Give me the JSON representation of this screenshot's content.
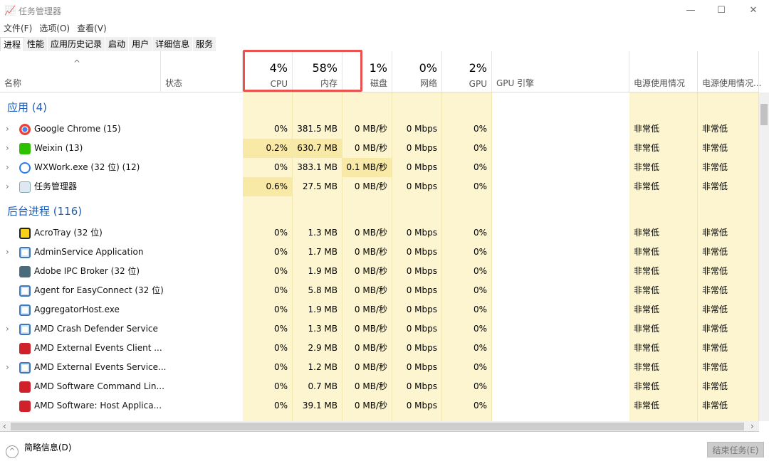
{
  "window": {
    "title": "任务管理器",
    "minimize": "—",
    "maximize": "☐",
    "close": "✕"
  },
  "menu": [
    "文件(F)",
    "选项(O)",
    "查看(V)"
  ],
  "tabs": [
    "进程",
    "性能",
    "应用历史记录",
    "启动",
    "用户",
    "详细信息",
    "服务"
  ],
  "columns": {
    "name": "名称",
    "status": "状态",
    "cpu_pct": "4%",
    "cpu": "CPU",
    "mem_pct": "58%",
    "mem": "内存",
    "disk_pct": "1%",
    "disk": "磁盘",
    "net_pct": "0%",
    "net": "网络",
    "gpu_pct": "2%",
    "gpu": "GPU",
    "gpu_engine": "GPU 引擎",
    "power": "电源使用情况",
    "power_trend": "电源使用情况..."
  },
  "groups": [
    {
      "label": "应用 (4)",
      "rows": [
        {
          "name": "Google Chrome (15)",
          "icon": "chrome-icon",
          "expand": true,
          "cpu": "0%",
          "mem": "381.5 MB",
          "disk": "0 MB/秒",
          "net": "0 Mbps",
          "gpu": "0%",
          "power": "非常低",
          "trend": "非常低",
          "hi": []
        },
        {
          "name": "Weixin (13)",
          "icon": "weixin-icon",
          "expand": true,
          "cpu": "0.2%",
          "mem": "630.7 MB",
          "disk": "0 MB/秒",
          "net": "0 Mbps",
          "gpu": "0%",
          "power": "非常低",
          "trend": "非常低",
          "hi": [
            "cpu",
            "mem"
          ]
        },
        {
          "name": "WXWork.exe (32 位) (12)",
          "icon": "wxwork-icon",
          "expand": true,
          "cpu": "0%",
          "mem": "383.1 MB",
          "disk": "0.1 MB/秒",
          "net": "0 Mbps",
          "gpu": "0%",
          "power": "非常低",
          "trend": "非常低",
          "hi": [
            "disk"
          ]
        },
        {
          "name": "任务管理器",
          "icon": "task-manager-icon",
          "expand": true,
          "cpu": "0.6%",
          "mem": "27.5 MB",
          "disk": "0 MB/秒",
          "net": "0 Mbps",
          "gpu": "0%",
          "power": "非常低",
          "trend": "非常低",
          "hi": [
            "cpu"
          ]
        }
      ]
    },
    {
      "label": "后台进程 (116)",
      "rows": [
        {
          "name": "AcroTray (32 位)",
          "icon": "acrotray-icon",
          "expand": false,
          "cpu": "0%",
          "mem": "1.3 MB",
          "disk": "0 MB/秒",
          "net": "0 Mbps",
          "gpu": "0%",
          "power": "非常低",
          "trend": "非常低",
          "hi": []
        },
        {
          "name": "AdminService Application",
          "icon": "service-icon",
          "expand": true,
          "cpu": "0%",
          "mem": "1.7 MB",
          "disk": "0 MB/秒",
          "net": "0 Mbps",
          "gpu": "0%",
          "power": "非常低",
          "trend": "非常低",
          "hi": []
        },
        {
          "name": "Adobe IPC Broker (32 位)",
          "icon": "adobe-icon",
          "expand": false,
          "cpu": "0%",
          "mem": "1.9 MB",
          "disk": "0 MB/秒",
          "net": "0 Mbps",
          "gpu": "0%",
          "power": "非常低",
          "trend": "非常低",
          "hi": []
        },
        {
          "name": "Agent for EasyConnect (32 位)",
          "icon": "service-icon",
          "expand": false,
          "cpu": "0%",
          "mem": "5.8 MB",
          "disk": "0 MB/秒",
          "net": "0 Mbps",
          "gpu": "0%",
          "power": "非常低",
          "trend": "非常低",
          "hi": []
        },
        {
          "name": "AggregatorHost.exe",
          "icon": "service-icon",
          "expand": false,
          "cpu": "0%",
          "mem": "1.9 MB",
          "disk": "0 MB/秒",
          "net": "0 Mbps",
          "gpu": "0%",
          "power": "非常低",
          "trend": "非常低",
          "hi": []
        },
        {
          "name": "AMD Crash Defender Service",
          "icon": "service-icon",
          "expand": true,
          "cpu": "0%",
          "mem": "1.3 MB",
          "disk": "0 MB/秒",
          "net": "0 Mbps",
          "gpu": "0%",
          "power": "非常低",
          "trend": "非常低",
          "hi": []
        },
        {
          "name": "AMD External Events Client ...",
          "icon": "amd-icon",
          "expand": false,
          "cpu": "0%",
          "mem": "2.9 MB",
          "disk": "0 MB/秒",
          "net": "0 Mbps",
          "gpu": "0%",
          "power": "非常低",
          "trend": "非常低",
          "hi": []
        },
        {
          "name": "AMD External Events Service...",
          "icon": "service-icon",
          "expand": true,
          "cpu": "0%",
          "mem": "1.2 MB",
          "disk": "0 MB/秒",
          "net": "0 Mbps",
          "gpu": "0%",
          "power": "非常低",
          "trend": "非常低",
          "hi": []
        },
        {
          "name": "AMD Software Command Lin...",
          "icon": "amd-icon",
          "expand": false,
          "cpu": "0%",
          "mem": "0.7 MB",
          "disk": "0 MB/秒",
          "net": "0 Mbps",
          "gpu": "0%",
          "power": "非常低",
          "trend": "非常低",
          "hi": []
        },
        {
          "name": "AMD Software: Host Applica...",
          "icon": "amd-icon",
          "expand": false,
          "cpu": "0%",
          "mem": "39.1 MB",
          "disk": "0 MB/秒",
          "net": "0 Mbps",
          "gpu": "0%",
          "power": "非常低",
          "trend": "非常低",
          "hi": []
        }
      ]
    }
  ],
  "footer": {
    "fewer_details": "简略信息(D)",
    "end_task": "结束任务(E)"
  },
  "colors": {
    "highlight_box": "#e9534f",
    "group_label": "#1f5fb7",
    "cell_light": "#fdf5cf",
    "cell_dark": "#f9e9a6"
  }
}
